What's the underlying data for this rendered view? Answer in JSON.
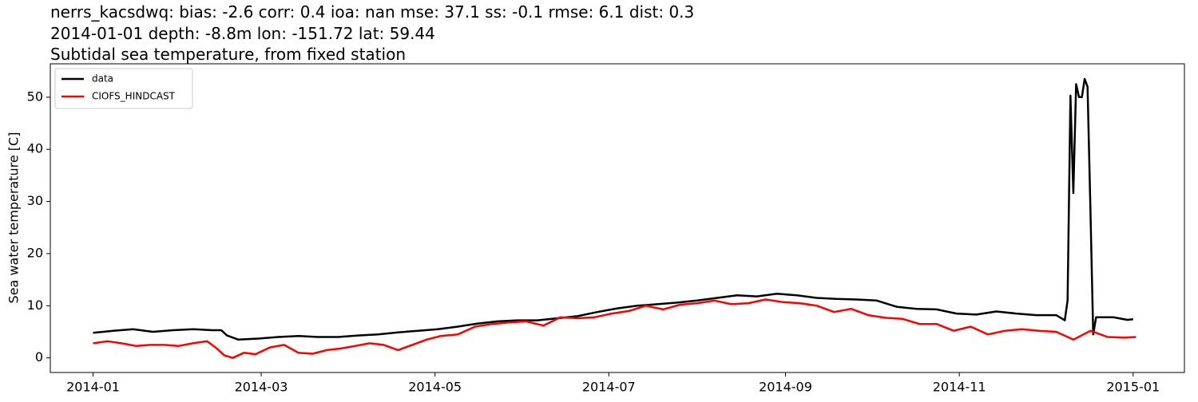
{
  "chart_data": {
    "type": "line",
    "title": [
      "nerrs_kacsdwq: bias: -2.6  corr: 0.4  ioa: nan  mse: 37.1  ss: -0.1  rmse: 6.1  dist: 0.3",
      "2014-01-01 depth: -8.8m lon: -151.72 lat: 59.44",
      "Subtidal sea temperature, from fixed station"
    ],
    "y_label": "Sea water temperature [C]",
    "xlim": [
      -15,
      383
    ],
    "ylim": [
      -2.8,
      56.4
    ],
    "xticks": [
      {
        "value": 0,
        "label": "2014-01"
      },
      {
        "value": 59,
        "label": "2014-03"
      },
      {
        "value": 120,
        "label": "2014-05"
      },
      {
        "value": 181,
        "label": "2014-07"
      },
      {
        "value": 243,
        "label": "2014-09"
      },
      {
        "value": 304,
        "label": "2014-11"
      },
      {
        "value": 365,
        "label": "2015-01"
      }
    ],
    "yticks": [
      0,
      10,
      20,
      30,
      40,
      50
    ],
    "grid": false,
    "legend": "upper left",
    "series": [
      {
        "name": "data",
        "color": "#000000",
        "x": [
          0,
          7,
          14,
          21,
          28,
          35,
          42,
          45,
          47,
          51,
          58,
          65,
          72,
          79,
          86,
          93,
          100,
          107,
          114,
          121,
          128,
          135,
          142,
          149,
          156,
          163,
          170,
          177,
          184,
          191,
          198,
          205,
          212,
          219,
          226,
          233,
          240,
          247,
          254,
          261,
          268,
          275,
          282,
          289,
          296,
          303,
          310,
          317,
          324,
          331,
          338,
          341,
          342,
          343,
          344,
          345,
          346,
          347,
          348,
          349,
          350,
          351,
          352,
          358,
          363,
          365
        ],
        "values": [
          4.8,
          5.2,
          5.5,
          5.0,
          5.3,
          5.5,
          5.3,
          5.3,
          4.3,
          3.5,
          3.7,
          4.0,
          4.2,
          4.0,
          4.0,
          4.3,
          4.5,
          4.9,
          5.2,
          5.5,
          6.0,
          6.6,
          7.0,
          7.2,
          7.2,
          7.6,
          8.0,
          8.8,
          9.5,
          10.0,
          10.3,
          10.6,
          11.0,
          11.5,
          12.0,
          11.8,
          12.3,
          12.0,
          11.5,
          11.3,
          11.2,
          11.0,
          9.8,
          9.4,
          9.3,
          8.5,
          8.3,
          8.9,
          8.5,
          8.2,
          8.2,
          7.2,
          11.0,
          50.3,
          31.6,
          52.5,
          50.0,
          50.0,
          53.5,
          52.0,
          28.5,
          4.5,
          7.8,
          7.8,
          7.3,
          7.4
        ]
      },
      {
        "name": "CIOFS_HINDCAST",
        "color": "#ff0000",
        "x": [
          0,
          5,
          10,
          15,
          20,
          25,
          30,
          35,
          40,
          43,
          46,
          49,
          53,
          57,
          62,
          67,
          72,
          77,
          82,
          87,
          92,
          97,
          102,
          107,
          112,
          117,
          122,
          128,
          134,
          140,
          146,
          152,
          158,
          164,
          170,
          176,
          182,
          188,
          194,
          200,
          206,
          212,
          218,
          224,
          230,
          236,
          242,
          248,
          254,
          260,
          266,
          272,
          278,
          284,
          290,
          296,
          302,
          308,
          314,
          320,
          326,
          332,
          338,
          344,
          350,
          356,
          362,
          366
        ],
        "values": [
          2.8,
          3.2,
          2.8,
          2.3,
          2.5,
          2.5,
          2.3,
          2.8,
          3.2,
          2.0,
          0.5,
          0.0,
          1.0,
          0.7,
          2.0,
          2.5,
          1.0,
          0.8,
          1.5,
          1.8,
          2.3,
          2.8,
          2.5,
          1.5,
          2.5,
          3.5,
          4.2,
          4.5,
          6.0,
          6.5,
          6.8,
          7.0,
          6.2,
          7.8,
          7.6,
          7.8,
          8.5,
          9.0,
          10.0,
          9.3,
          10.2,
          10.5,
          11.0,
          10.3,
          10.5,
          11.2,
          10.7,
          10.5,
          10.0,
          8.8,
          9.4,
          8.2,
          7.7,
          7.5,
          6.5,
          6.5,
          5.2,
          6.0,
          4.5,
          5.2,
          5.5,
          5.2,
          5.0,
          3.5,
          5.2,
          4.0,
          3.9,
          4.0
        ]
      }
    ]
  }
}
